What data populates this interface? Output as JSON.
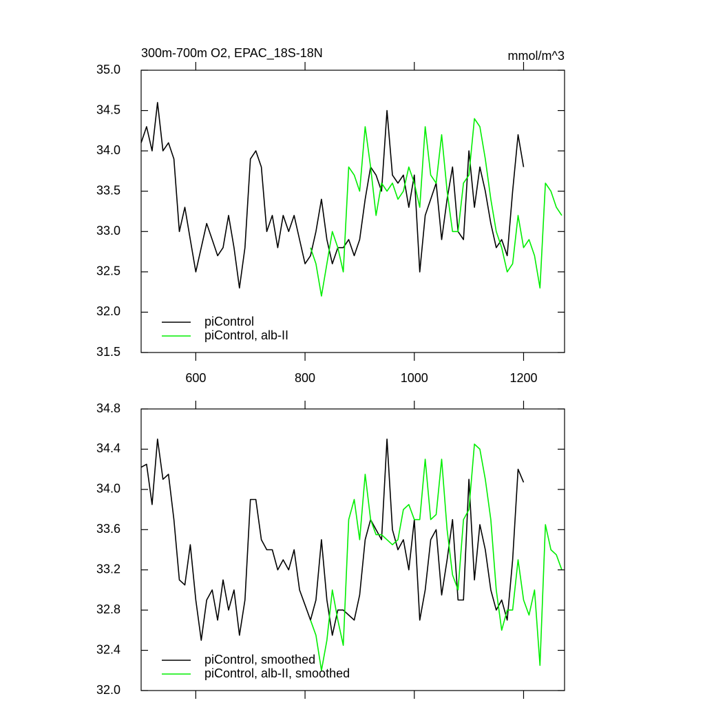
{
  "chart_data": [
    {
      "type": "line",
      "title": "300m-700m O2, EPAC_18S-18N",
      "subtitle": "mmol/m^3",
      "xlim": [
        500,
        1275
      ],
      "xticks": [
        600,
        800,
        1000,
        1200
      ],
      "ylim": [
        31.5,
        35.0
      ],
      "yticks": [
        {
          "value": 31.5,
          "label": "31.5"
        },
        {
          "value": 32.0,
          "label": "32.0"
        },
        32.5,
        {
          "value": 33.0,
          "label": "33.0"
        },
        33.5,
        {
          "value": 34.0,
          "label": "34.0"
        },
        34.5,
        {
          "value": 35.0,
          "label": "35.0"
        }
      ],
      "legend": "lower left",
      "series": [
        {
          "name": "piControl",
          "color": "#000000",
          "x": [
            500,
            510,
            520,
            530,
            540,
            550,
            560,
            570,
            580,
            590,
            600,
            610,
            620,
            630,
            640,
            650,
            660,
            670,
            680,
            690,
            700,
            710,
            720,
            730,
            740,
            750,
            760,
            770,
            780,
            790,
            800,
            810,
            820,
            830,
            840,
            850,
            860,
            870,
            880,
            890,
            900,
            910,
            920,
            930,
            940,
            950,
            960,
            970,
            980,
            990,
            1000,
            1010,
            1020,
            1030,
            1040,
            1050,
            1060,
            1070,
            1080,
            1090,
            1100,
            1110,
            1120,
            1130,
            1140,
            1150,
            1160,
            1170,
            1180,
            1190,
            1200
          ],
          "values": [
            34.1,
            34.3,
            34.0,
            34.6,
            34.0,
            34.1,
            33.9,
            33.0,
            33.3,
            32.9,
            32.5,
            32.8,
            33.1,
            32.9,
            32.7,
            32.8,
            33.2,
            32.8,
            32.3,
            32.8,
            33.9,
            34.0,
            33.8,
            33.0,
            33.2,
            32.8,
            33.2,
            33.0,
            33.2,
            32.9,
            32.6,
            32.7,
            33.0,
            33.4,
            32.9,
            32.6,
            32.8,
            32.8,
            32.9,
            32.7,
            32.9,
            33.4,
            33.8,
            33.7,
            33.5,
            34.5,
            33.7,
            33.6,
            33.7,
            33.3,
            33.7,
            32.5,
            33.2,
            33.4,
            33.6,
            32.9,
            33.4,
            33.8,
            33.0,
            32.9,
            34.0,
            33.3,
            33.8,
            33.5,
            33.1,
            32.8,
            32.9,
            32.7,
            33.5,
            34.2,
            33.8
          ]
        },
        {
          "name": "piControl, alb-II",
          "color": "#00ee00",
          "x": [
            810,
            820,
            830,
            840,
            850,
            860,
            870,
            880,
            890,
            900,
            910,
            920,
            930,
            940,
            950,
            960,
            970,
            980,
            990,
            1000,
            1010,
            1020,
            1030,
            1040,
            1050,
            1060,
            1070,
            1080,
            1090,
            1100,
            1110,
            1120,
            1130,
            1140,
            1150,
            1160,
            1170,
            1180,
            1190,
            1200,
            1210,
            1220,
            1230,
            1240,
            1250,
            1260,
            1270
          ],
          "values": [
            32.8,
            32.6,
            32.2,
            32.6,
            33.0,
            32.8,
            32.5,
            33.8,
            33.7,
            33.5,
            34.3,
            33.8,
            33.2,
            33.6,
            33.5,
            33.6,
            33.4,
            33.5,
            33.8,
            33.6,
            33.3,
            34.3,
            33.7,
            33.6,
            34.2,
            33.5,
            33.0,
            33.0,
            33.6,
            33.7,
            34.4,
            34.3,
            33.9,
            33.4,
            33.0,
            32.8,
            32.5,
            32.6,
            33.2,
            32.8,
            32.9,
            32.7,
            32.3,
            33.6,
            33.5,
            33.3,
            33.2
          ]
        }
      ]
    },
    {
      "type": "line",
      "xlim": [
        500,
        1275
      ],
      "xticks": [
        600,
        800,
        1000,
        1200
      ],
      "ylim": [
        32.0,
        34.8
      ],
      "yticks": [
        {
          "value": 32.0,
          "label": "32.0"
        },
        32.4,
        32.8,
        33.2,
        33.6,
        {
          "value": 34.0,
          "label": "34.0"
        },
        34.4,
        34.8
      ],
      "legend": "lower left",
      "series": [
        {
          "name": "piControl, smoothed",
          "color": "#000000",
          "x": [
            500,
            510,
            520,
            530,
            540,
            550,
            560,
            570,
            580,
            590,
            600,
            610,
            620,
            630,
            640,
            650,
            660,
            670,
            680,
            690,
            700,
            710,
            720,
            730,
            740,
            750,
            760,
            770,
            780,
            790,
            800,
            810,
            820,
            830,
            840,
            850,
            860,
            870,
            880,
            890,
            900,
            910,
            920,
            930,
            940,
            950,
            960,
            970,
            980,
            990,
            1000,
            1010,
            1020,
            1030,
            1040,
            1050,
            1060,
            1070,
            1080,
            1090,
            1100,
            1110,
            1120,
            1130,
            1140,
            1150,
            1160,
            1170,
            1180,
            1190,
            1200
          ],
          "values": [
            34.22,
            34.25,
            33.85,
            34.5,
            34.1,
            34.15,
            33.7,
            33.1,
            33.05,
            33.45,
            32.9,
            32.5,
            32.9,
            33.0,
            32.7,
            33.1,
            32.8,
            33.0,
            32.55,
            32.9,
            33.9,
            33.9,
            33.5,
            33.4,
            33.4,
            33.2,
            33.3,
            33.2,
            33.4,
            33.0,
            32.85,
            32.7,
            32.9,
            33.5,
            32.9,
            32.55,
            32.8,
            32.8,
            32.75,
            32.7,
            32.95,
            33.5,
            33.7,
            33.6,
            33.5,
            34.5,
            33.6,
            33.4,
            33.5,
            33.2,
            33.7,
            32.7,
            33.0,
            33.5,
            33.6,
            32.95,
            33.3,
            33.7,
            32.9,
            32.9,
            34.1,
            33.1,
            33.65,
            33.4,
            33.0,
            32.8,
            32.9,
            32.7,
            33.3,
            34.2,
            34.07
          ]
        },
        {
          "name": "piControl, alb-II, smoothed",
          "color": "#00ee00",
          "x": [
            810,
            820,
            830,
            840,
            850,
            860,
            870,
            880,
            890,
            900,
            910,
            920,
            930,
            940,
            950,
            960,
            970,
            980,
            990,
            1000,
            1010,
            1020,
            1030,
            1040,
            1050,
            1060,
            1070,
            1080,
            1090,
            1100,
            1110,
            1120,
            1130,
            1140,
            1150,
            1160,
            1170,
            1180,
            1190,
            1200,
            1210,
            1220,
            1230,
            1240,
            1250,
            1260,
            1270
          ],
          "values": [
            32.7,
            32.55,
            32.2,
            32.5,
            33.0,
            32.7,
            32.45,
            33.7,
            33.9,
            33.5,
            34.15,
            33.7,
            33.55,
            33.55,
            33.5,
            33.45,
            33.5,
            33.8,
            33.85,
            33.7,
            33.7,
            34.3,
            33.7,
            33.75,
            34.3,
            33.6,
            33.15,
            33.0,
            33.7,
            33.8,
            34.45,
            34.4,
            34.1,
            33.7,
            33.0,
            32.6,
            32.8,
            32.8,
            33.3,
            32.9,
            32.75,
            33.0,
            32.25,
            33.65,
            33.4,
            33.35,
            33.2
          ]
        }
      ]
    }
  ]
}
